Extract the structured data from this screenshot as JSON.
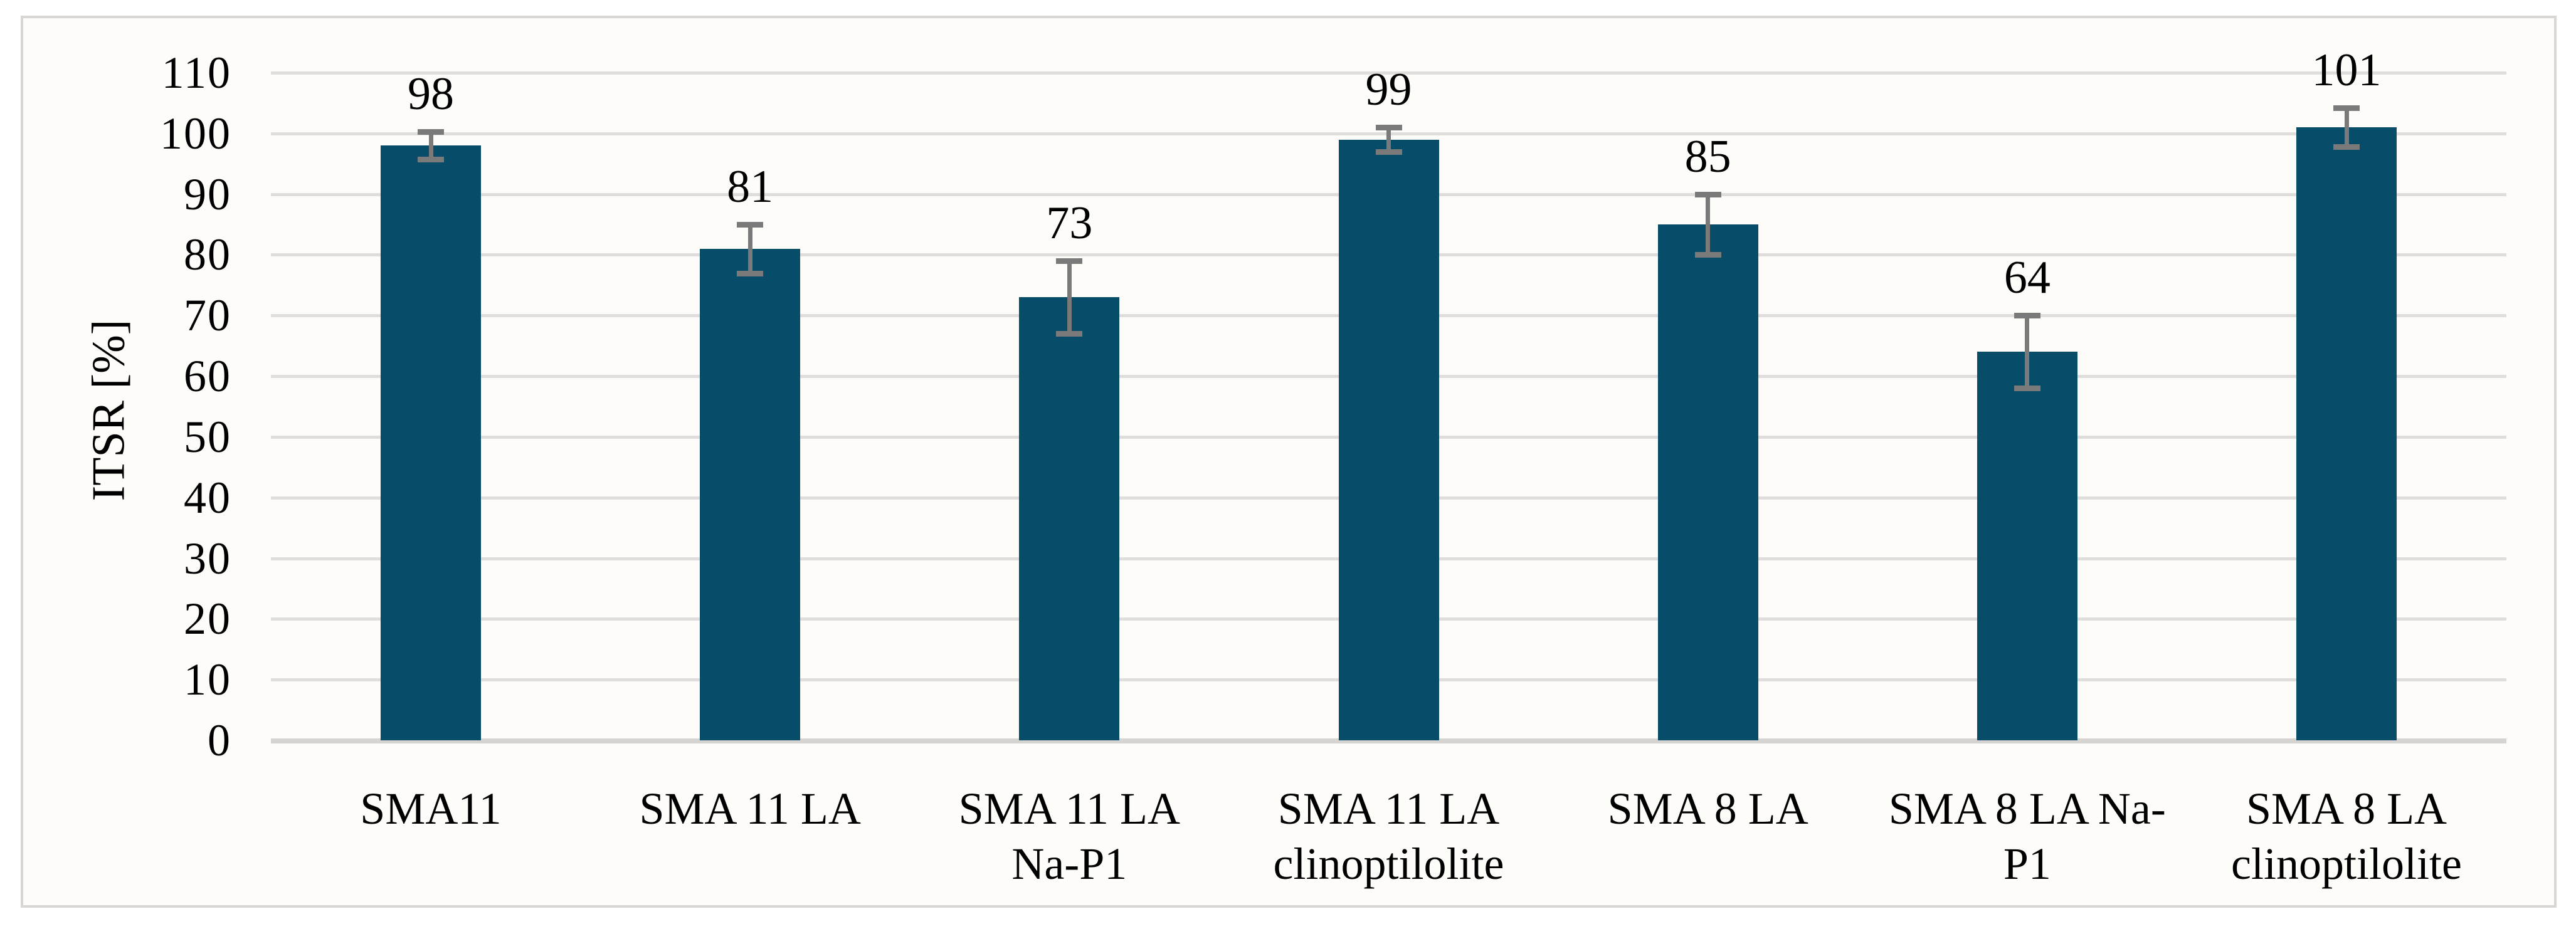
{
  "chart_data": {
    "type": "bar",
    "title": "",
    "xlabel": "",
    "ylabel": "ITSR [%]",
    "ylim": [
      0,
      110
    ],
    "y_tick_step": 10,
    "y_tick_labels": [
      "0",
      "10",
      "20",
      "30",
      "40",
      "50",
      "60",
      "70",
      "80",
      "90",
      "100",
      "110"
    ],
    "grid": "horizontal-on",
    "legend_position": "none",
    "categories": [
      "SMA11",
      "SMA 11 LA",
      "SMA 11 LA Na-P1",
      "SMA 11 LA clinoptilolite",
      "SMA 8 LA",
      "SMA 8 LA Na-P1",
      "SMA 8 LA clinoptilolite"
    ],
    "category_label_lines": [
      [
        "SMA11"
      ],
      [
        "SMA 11 LA"
      ],
      [
        "SMA 11 LA",
        "Na-P1"
      ],
      [
        "SMA 11 LA",
        "clinoptilolite"
      ],
      [
        "SMA 8 LA"
      ],
      [
        "SMA 8 LA Na-",
        "P1"
      ],
      [
        "SMA 8 LA",
        "clinoptilolite"
      ]
    ],
    "series": [
      {
        "name": "ITSR",
        "values": [
          98,
          81,
          73,
          99,
          85,
          64,
          101
        ],
        "value_labels": [
          "98",
          "81",
          "73",
          "99",
          "85",
          "64",
          "101"
        ],
        "error_bars_plus_minus": [
          2.3,
          4,
          6,
          2,
          5,
          6,
          3.2
        ]
      }
    ],
    "colors": {
      "bar_fill": "#074c68",
      "gridline": "#e0dedc",
      "axis_line": "#d6d4d1",
      "error_bar": "#7a7a7a",
      "text": "#000000",
      "frame_border": "#d8d6d3",
      "chart_background": "#fdfcf9"
    }
  }
}
